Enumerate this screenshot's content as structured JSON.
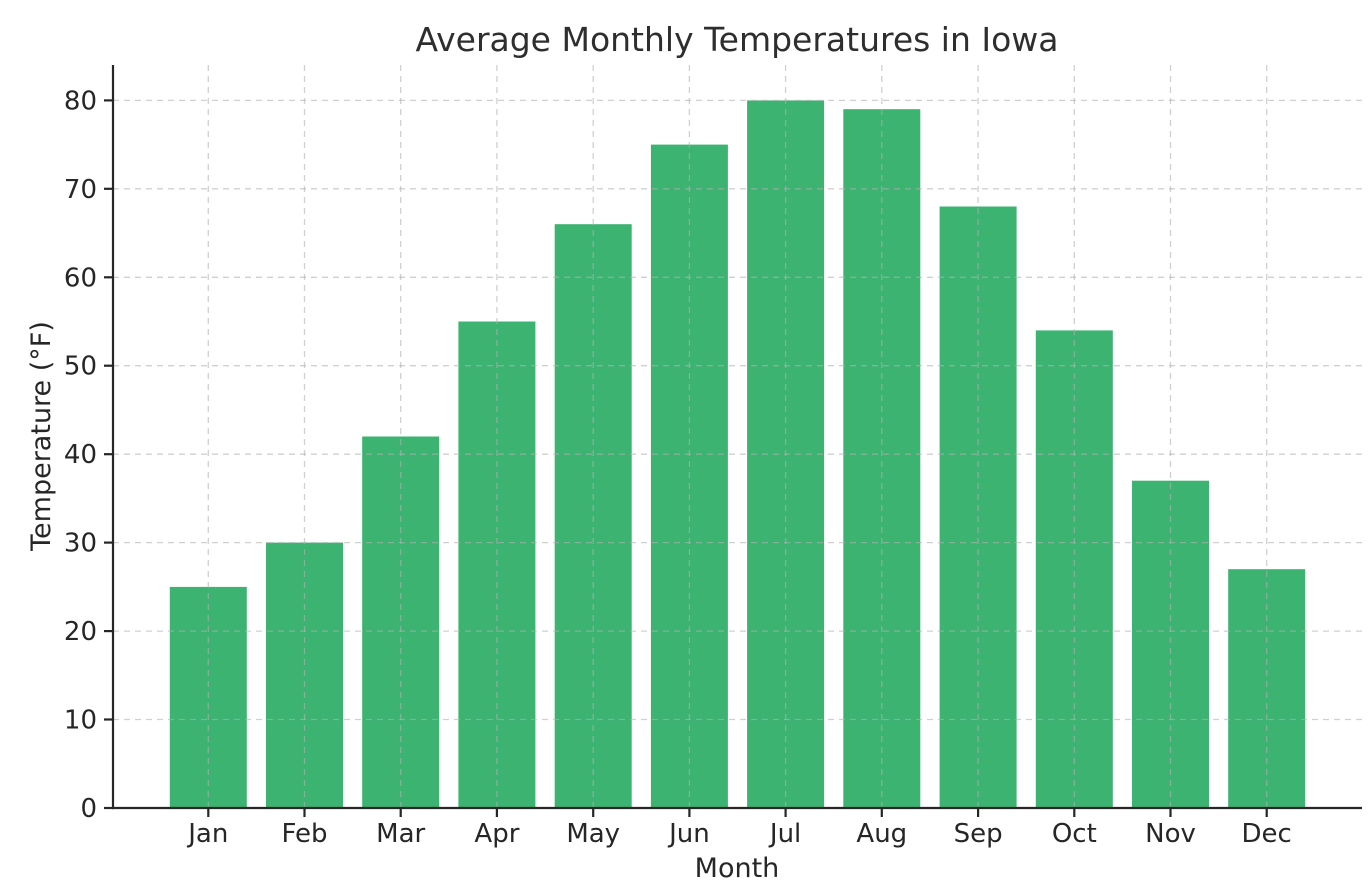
{
  "chart_data": {
    "type": "bar",
    "title": "Average Monthly Temperatures in Iowa",
    "xlabel": "Month",
    "ylabel": "Temperature (°F)",
    "categories": [
      "Jan",
      "Feb",
      "Mar",
      "Apr",
      "May",
      "Jun",
      "Jul",
      "Aug",
      "Sep",
      "Oct",
      "Nov",
      "Dec"
    ],
    "values": [
      25,
      30,
      42,
      55,
      66,
      75,
      80,
      79,
      68,
      54,
      37,
      27
    ],
    "ylim": [
      0,
      84
    ],
    "yticks": [
      0,
      10,
      20,
      30,
      40,
      50,
      60,
      70,
      80
    ],
    "bar_color": "#3cb371",
    "grid": "on",
    "grid_style": "dashed",
    "grid_color": "#c9c9c9",
    "axis_color": "#262626",
    "text_color": "#262626",
    "background_color": "#ffffff",
    "legend_position": "none"
  }
}
